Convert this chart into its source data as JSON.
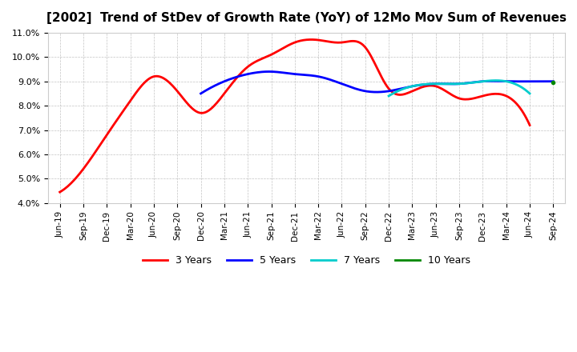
{
  "title": "[2002]  Trend of StDev of Growth Rate (YoY) of 12Mo Mov Sum of Revenues",
  "ylim": [
    0.04,
    0.11
  ],
  "yticks": [
    0.04,
    0.05,
    0.06,
    0.07,
    0.08,
    0.09,
    0.1,
    0.11
  ],
  "xlabel": "",
  "ylabel": "",
  "background_color": "#ffffff",
  "grid_color": "#aaaaaa",
  "x_labels": [
    "Jun-19",
    "Sep-19",
    "Dec-19",
    "Mar-20",
    "Jun-20",
    "Sep-20",
    "Dec-20",
    "Mar-21",
    "Jun-21",
    "Sep-21",
    "Dec-21",
    "Mar-22",
    "Jun-22",
    "Sep-22",
    "Dec-22",
    "Mar-23",
    "Jun-23",
    "Sep-23",
    "Dec-23",
    "Mar-24",
    "Jun-24",
    "Sep-24"
  ],
  "series": {
    "3 Years": {
      "color": "#ff0000",
      "data_x": [
        0,
        1,
        2,
        3,
        4,
        5,
        6,
        7,
        8,
        9,
        10,
        11,
        12,
        13,
        14,
        15,
        16,
        17,
        18,
        19,
        20,
        21
      ],
      "data_y": [
        0.0445,
        0.054,
        0.068,
        0.082,
        0.092,
        0.086,
        0.077,
        0.085,
        0.096,
        0.101,
        0.106,
        0.107,
        0.106,
        0.104,
        0.087,
        0.086,
        0.088,
        0.083,
        0.084,
        0.084,
        0.072,
        null
      ]
    },
    "5 Years": {
      "color": "#0000ff",
      "data_x": [
        6,
        7,
        8,
        9,
        10,
        11,
        12,
        13,
        14,
        15,
        16,
        17,
        18,
        19,
        20,
        21
      ],
      "data_y": [
        0.085,
        0.09,
        0.093,
        0.094,
        0.093,
        0.092,
        0.089,
        0.086,
        0.086,
        0.088,
        0.089,
        0.089,
        0.09,
        0.09,
        0.09,
        0.09
      ]
    },
    "7 Years": {
      "color": "#00cccc",
      "data_x": [
        10,
        11,
        12,
        13,
        14,
        15,
        16,
        17,
        18,
        19,
        20,
        21
      ],
      "data_y": [
        null,
        null,
        null,
        null,
        0.084,
        0.088,
        0.089,
        0.089,
        0.09,
        0.09,
        0.085,
        null
      ]
    },
    "10 Years": {
      "color": "#008800",
      "data_x": [
        13,
        14,
        15,
        16,
        17,
        18,
        19,
        20,
        21
      ],
      "data_y": [
        null,
        null,
        null,
        null,
        null,
        null,
        null,
        null,
        0.0895
      ]
    }
  },
  "legend_labels": [
    "3 Years",
    "5 Years",
    "7 Years",
    "10 Years"
  ],
  "legend_colors": [
    "#ff0000",
    "#0000ff",
    "#00cccc",
    "#008800"
  ]
}
